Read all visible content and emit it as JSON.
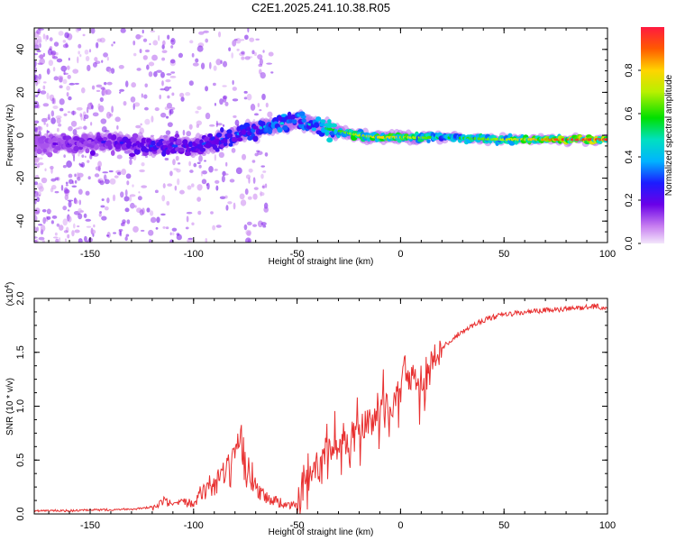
{
  "title": "C2E1.2025.241.10.38.R05",
  "chart_data": [
    {
      "type": "heatmap",
      "xlabel": "Height of straight line (km)",
      "ylabel": "Frequency (Hz)",
      "xlim": [
        -177,
        100
      ],
      "ylim": [
        -50,
        50
      ],
      "xticks": [
        -150,
        -100,
        -50,
        0,
        50,
        100
      ],
      "xtick_labels": [
        "-150",
        "-100",
        "-50",
        "0",
        "50",
        "100"
      ],
      "yticks": [
        -40,
        -20,
        0,
        20,
        40
      ],
      "ytick_labels": [
        "-40",
        "-20",
        "0",
        "20",
        "40"
      ],
      "ridge": {
        "x": [
          -177,
          -160,
          -140,
          -120,
          -100,
          -90,
          -80,
          -70,
          -60,
          -50,
          -40,
          -30,
          -20,
          -10,
          0,
          20,
          50,
          80,
          100
        ],
        "frequency": [
          -4,
          -4,
          -3,
          -5,
          -5,
          -3,
          0,
          3,
          5,
          7,
          4,
          2,
          0,
          -1,
          -1,
          -1,
          -2,
          -2,
          -2
        ],
        "amplitude": [
          0.15,
          0.2,
          0.25,
          0.3,
          0.3,
          0.32,
          0.36,
          0.4,
          0.45,
          0.45,
          0.5,
          0.6,
          0.75,
          0.8,
          0.8,
          0.55,
          0.7,
          0.95,
          0.95
        ]
      },
      "colorbar": {
        "label": "Normalized spectral amplitude",
        "ticks": [
          0.0,
          0.2,
          0.4,
          0.6,
          0.8
        ],
        "tick_labels": [
          "0.0",
          "0.2",
          "0.4",
          "0.6",
          "0.8"
        ],
        "range": [
          0,
          1
        ]
      }
    },
    {
      "type": "line",
      "xlabel": "Height of straight line (km)",
      "ylabel": "SNR (10 * v/v)",
      "multiplier_base": "(x10",
      "multiplier_exp": "4",
      "multiplier_close": ")",
      "xlim": [
        -177,
        100
      ],
      "ylim": [
        0,
        2.0
      ],
      "xticks": [
        -150,
        -100,
        -50,
        0,
        50,
        100
      ],
      "xtick_labels": [
        "-150",
        "-100",
        "-50",
        "0",
        "50",
        "100"
      ],
      "yticks": [
        0.0,
        0.5,
        1.0,
        1.5,
        2.0
      ],
      "ytick_labels": [
        "0.0",
        "0.5",
        "1.0",
        "1.5",
        "2.0"
      ],
      "series": [
        {
          "name": "SNR",
          "color": "#e83030",
          "x": [
            -177,
            -160,
            -140,
            -125,
            -118,
            -115,
            -110,
            -100,
            -95,
            -90,
            -85,
            -80,
            -77,
            -75,
            -72,
            -70,
            -65,
            -60,
            -55,
            -50,
            -48,
            -45,
            -40,
            -35,
            -30,
            -25,
            -20,
            -15,
            -12,
            -10,
            -8,
            -5,
            -3,
            0,
            2,
            4,
            6,
            8,
            10,
            12,
            14,
            16,
            18,
            20,
            25,
            30,
            35,
            40,
            50,
            60,
            70,
            80,
            90,
            95,
            98,
            100
          ],
          "y": [
            0.02,
            0.02,
            0.03,
            0.04,
            0.06,
            0.12,
            0.08,
            0.12,
            0.22,
            0.28,
            0.35,
            0.45,
            0.6,
            0.45,
            0.35,
            0.28,
            0.15,
            0.12,
            0.08,
            0.08,
            0.12,
            0.3,
            0.48,
            0.55,
            0.62,
            0.7,
            0.78,
            0.85,
            0.88,
            0.95,
            1.0,
            1.02,
            1.05,
            1.1,
            1.5,
            1.25,
            1.3,
            1.2,
            1.15,
            1.25,
            1.35,
            1.45,
            1.5,
            1.55,
            1.62,
            1.7,
            1.75,
            1.8,
            1.85,
            1.87,
            1.89,
            1.9,
            1.92,
            1.93,
            1.9,
            1.92
          ]
        }
      ]
    }
  ]
}
